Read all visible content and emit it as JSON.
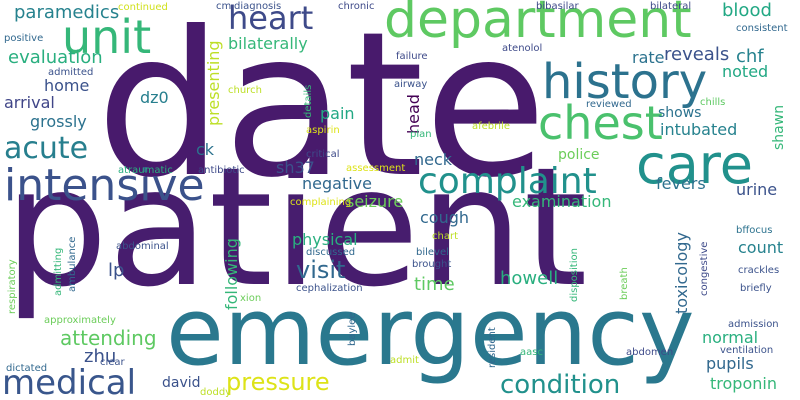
{
  "word_cloud": {
    "words": [
      {
        "text": "date",
        "color": "#481a6c"
      },
      {
        "text": "patient",
        "color": "#471d6e"
      },
      {
        "text": "emergency",
        "color": "#2a788e"
      },
      {
        "text": "department",
        "color": "#5ec962"
      },
      {
        "text": "history",
        "color": "#2c728e"
      },
      {
        "text": "chest",
        "color": "#4ac16d"
      },
      {
        "text": "care",
        "color": "#21918c"
      },
      {
        "text": "intensive",
        "color": "#3b528b"
      },
      {
        "text": "unit",
        "color": "#35b779"
      },
      {
        "text": "complaint",
        "color": "#21918c"
      },
      {
        "text": "medical",
        "color": "#39568c"
      },
      {
        "text": "heart",
        "color": "#3e4a89"
      },
      {
        "text": "acute",
        "color": "#277f8e"
      },
      {
        "text": "condition",
        "color": "#21918c"
      },
      {
        "text": "pressure",
        "color": "#dde318"
      },
      {
        "text": "visit",
        "color": "#31688e"
      },
      {
        "text": "evaluation",
        "color": "#29af7f"
      },
      {
        "text": "attending",
        "color": "#5ec962"
      },
      {
        "text": "paramedics",
        "color": "#26828e"
      },
      {
        "text": "reveals",
        "color": "#3b528b"
      },
      {
        "text": "chf",
        "color": "#26828e"
      },
      {
        "text": "blood",
        "color": "#22a884"
      },
      {
        "text": "noted",
        "color": "#22a884"
      },
      {
        "text": "rate",
        "color": "#2c728e"
      },
      {
        "text": "home",
        "color": "#3b528b"
      },
      {
        "text": "arrival",
        "color": "#404688"
      },
      {
        "text": "grossly",
        "color": "#2c728e"
      },
      {
        "text": "bilaterally",
        "color": "#35b779"
      },
      {
        "text": "presenting",
        "color": "#bddf26"
      },
      {
        "text": "dz0",
        "color": "#277f8e"
      },
      {
        "text": "pain",
        "color": "#22a884"
      },
      {
        "text": "shows",
        "color": "#2c728e"
      },
      {
        "text": "intubated",
        "color": "#26828e"
      },
      {
        "text": "ck",
        "color": "#2c728e"
      },
      {
        "text": "sh37",
        "color": "#3b528b"
      },
      {
        "text": "neck",
        "color": "#31688e"
      },
      {
        "text": "police",
        "color": "#6ccd5a"
      },
      {
        "text": "fevers",
        "color": "#2c728e"
      },
      {
        "text": "negative",
        "color": "#31688e"
      },
      {
        "text": "urine",
        "color": "#3b528b"
      },
      {
        "text": "seizure",
        "color": "#6ccd5a"
      },
      {
        "text": "examination",
        "color": "#35b779"
      },
      {
        "text": "cough",
        "color": "#31688e"
      },
      {
        "text": "physical",
        "color": "#29af7f"
      },
      {
        "text": "howell",
        "color": "#29af7f"
      },
      {
        "text": "time",
        "color": "#5ec962"
      },
      {
        "text": "count",
        "color": "#26828e"
      },
      {
        "text": "lp",
        "color": "#3b528b"
      },
      {
        "text": "zhu",
        "color": "#3b528b"
      },
      {
        "text": "normal",
        "color": "#29af7f"
      },
      {
        "text": "pupils",
        "color": "#31688e"
      },
      {
        "text": "troponin",
        "color": "#35b779"
      },
      {
        "text": "david",
        "color": "#3b528b"
      },
      {
        "text": "following",
        "color": "#35b779"
      },
      {
        "text": "toxicology",
        "color": "#31688e"
      },
      {
        "text": "head",
        "color": "#440154"
      },
      {
        "text": "shawn",
        "color": "#35b779"
      },
      {
        "text": "continued",
        "color": "#d0e11c"
      },
      {
        "text": "cm",
        "color": "#3b528b"
      },
      {
        "text": "chronic",
        "color": "#3e4a89"
      },
      {
        "text": "bibasilar",
        "color": "#3e4a89"
      },
      {
        "text": "bilateral",
        "color": "#3e4a89"
      },
      {
        "text": "positive",
        "color": "#31688e"
      },
      {
        "text": "admitted",
        "color": "#3b528b"
      },
      {
        "text": "consistent",
        "color": "#31688e"
      },
      {
        "text": "failure",
        "color": "#3e4a89"
      },
      {
        "text": "atenolol",
        "color": "#3e4a89"
      },
      {
        "text": "airway",
        "color": "#3b528b"
      },
      {
        "text": "church",
        "color": "#bddf26"
      },
      {
        "text": "details",
        "color": "#35b779"
      },
      {
        "text": "reviewed",
        "color": "#31688e"
      },
      {
        "text": "chills",
        "color": "#5ec962"
      },
      {
        "text": "aspirin",
        "color": "#dde318"
      },
      {
        "text": "plan",
        "color": "#35b779"
      },
      {
        "text": "afebrile",
        "color": "#bddf26"
      },
      {
        "text": "critical",
        "color": "#3e4a89"
      },
      {
        "text": "assessment",
        "color": "#dde318"
      },
      {
        "text": "atraumatic",
        "color": "#29af7f"
      },
      {
        "text": "antibiotic",
        "color": "#3e4a89"
      },
      {
        "text": "complaining",
        "color": "#dde318"
      },
      {
        "text": "chart",
        "color": "#bddf26"
      },
      {
        "text": "bffocus",
        "color": "#2c728e"
      },
      {
        "text": "admitting",
        "color": "#35b779"
      },
      {
        "text": "ambulance",
        "color": "#31688e"
      },
      {
        "text": "abdominal",
        "color": "#3b528b"
      },
      {
        "text": "discussed",
        "color": "#31688e"
      },
      {
        "text": "bilevel",
        "color": "#31688e"
      },
      {
        "text": "brought",
        "color": "#3b528b"
      },
      {
        "text": "congestive",
        "color": "#3e4a89"
      },
      {
        "text": "crackles",
        "color": "#3b528b"
      },
      {
        "text": "briefly",
        "color": "#3b528b"
      },
      {
        "text": "respiratory",
        "color": "#6ccd5a"
      },
      {
        "text": "xion",
        "color": "#6ccd5a"
      },
      {
        "text": "cephalization",
        "color": "#3b528b"
      },
      {
        "text": "disposition",
        "color": "#35b779"
      },
      {
        "text": "breath",
        "color": "#6ccd5a"
      },
      {
        "text": "approximately",
        "color": "#6ccd5a"
      },
      {
        "text": "baylee",
        "color": "#31688e"
      },
      {
        "text": "admission",
        "color": "#3b528b"
      },
      {
        "text": "ventilation",
        "color": "#3b528b"
      },
      {
        "text": "abdomen",
        "color": "#3e4a89"
      },
      {
        "text": "dictated",
        "color": "#31688e"
      },
      {
        "text": "clear",
        "color": "#3b528b"
      },
      {
        "text": "doddy",
        "color": "#bddf26"
      },
      {
        "text": "admit",
        "color": "#bddf26"
      },
      {
        "text": "aasc",
        "color": "#35b779"
      },
      {
        "text": "resident",
        "color": "#31688e"
      },
      {
        "text": "diagnosis",
        "color": "#3b528b"
      }
    ]
  }
}
